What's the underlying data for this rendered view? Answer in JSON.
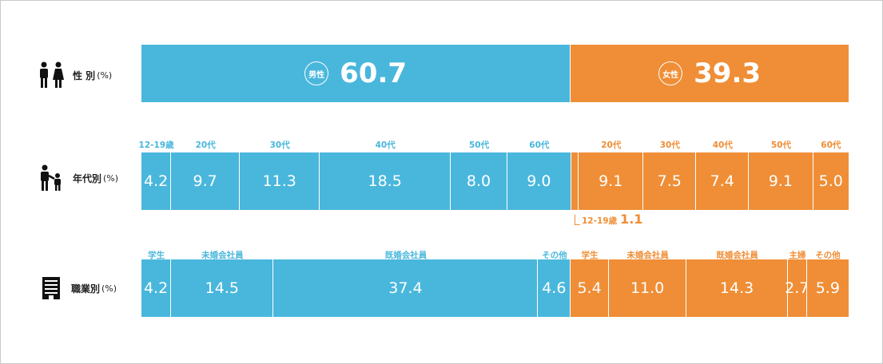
{
  "colors": {
    "male": "#49b7dc",
    "female": "#ef8e36"
  },
  "rows": [
    {
      "label": "性 別",
      "unit": "(%)",
      "icon": "couple-icon"
    },
    {
      "label": "年代別",
      "unit": "(%)",
      "icon": "parent-child-icon"
    },
    {
      "label": "職業別",
      "unit": "(%)",
      "icon": "building-icon"
    }
  ],
  "chart_data": [
    {
      "type": "bar",
      "stacked": true,
      "orientation": "horizontal",
      "name": "性 別",
      "segments": [
        {
          "group": "male",
          "badge": "男性",
          "value": 60.7
        },
        {
          "group": "female",
          "badge": "女性",
          "value": 39.3
        }
      ]
    },
    {
      "type": "bar",
      "stacked": true,
      "orientation": "horizontal",
      "name": "年代別",
      "segments": [
        {
          "group": "male",
          "category": "12-19歳",
          "value": 4.2
        },
        {
          "group": "male",
          "category": "20代",
          "value": 9.7
        },
        {
          "group": "male",
          "category": "30代",
          "value": 11.3
        },
        {
          "group": "male",
          "category": "40代",
          "value": 18.5
        },
        {
          "group": "male",
          "category": "50代",
          "value": 8.0
        },
        {
          "group": "male",
          "category": "60代",
          "value": 9.0
        },
        {
          "group": "female",
          "category": "12-19歳",
          "value": 1.1,
          "callout": true
        },
        {
          "group": "female",
          "category": "20代",
          "value": 9.1
        },
        {
          "group": "female",
          "category": "30代",
          "value": 7.5
        },
        {
          "group": "female",
          "category": "40代",
          "value": 7.4
        },
        {
          "group": "female",
          "category": "50代",
          "value": 9.1
        },
        {
          "group": "female",
          "category": "60代",
          "value": 5.0
        }
      ]
    },
    {
      "type": "bar",
      "stacked": true,
      "orientation": "horizontal",
      "name": "職業別",
      "segments": [
        {
          "group": "male",
          "category": "学生",
          "value": 4.2
        },
        {
          "group": "male",
          "category": "未婚会社員",
          "value": 14.5
        },
        {
          "group": "male",
          "category": "既婚会社員",
          "value": 37.4
        },
        {
          "group": "male",
          "category": "その他",
          "value": 4.6
        },
        {
          "group": "female",
          "category": "学生",
          "value": 5.4
        },
        {
          "group": "female",
          "category": "未婚会社員",
          "value": 11.0
        },
        {
          "group": "female",
          "category": "既婚会社員",
          "value": 14.3
        },
        {
          "group": "female",
          "category": "主婦",
          "value": 2.7
        },
        {
          "group": "female",
          "category": "その他",
          "value": 5.9
        }
      ]
    }
  ]
}
